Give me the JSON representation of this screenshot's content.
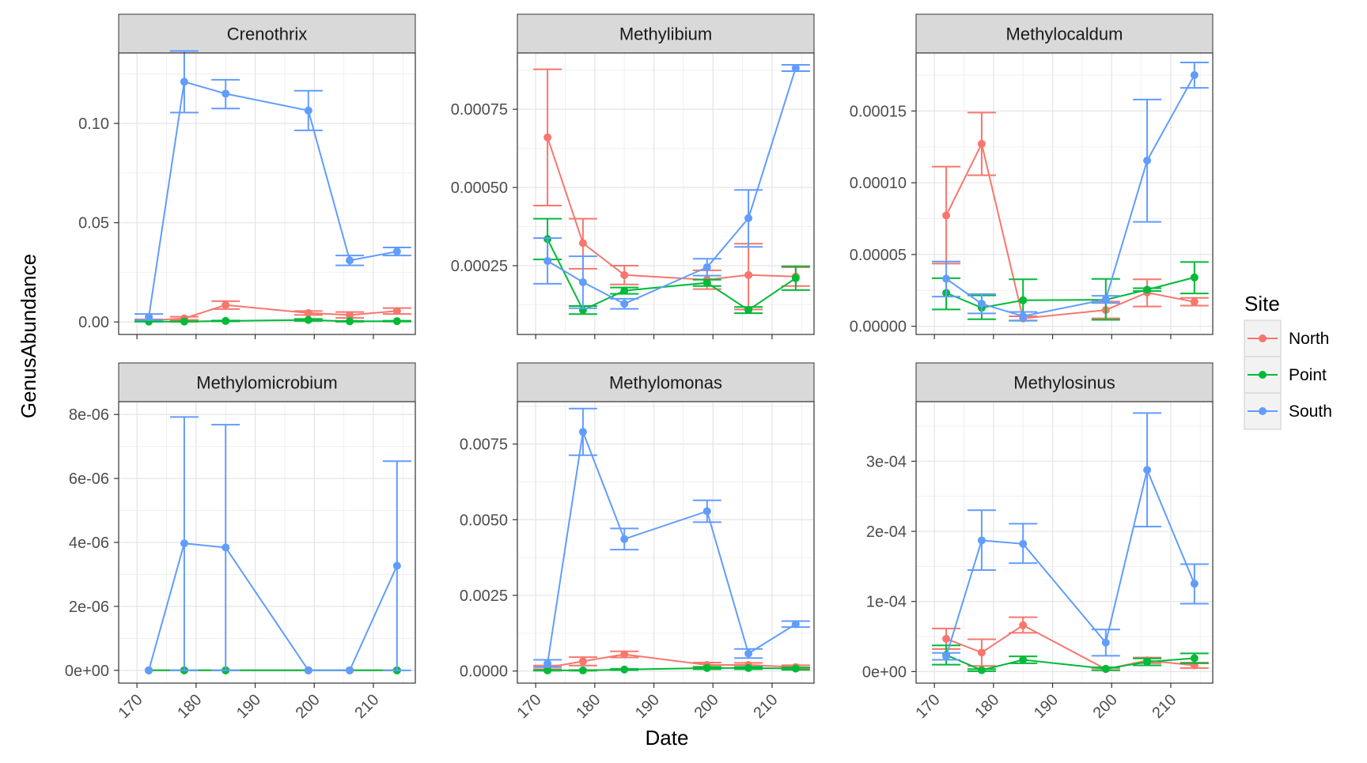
{
  "chart_data": {
    "type": "line",
    "xlabel": "Date",
    "ylabel": "GenusAbundance",
    "legend": {
      "title": "Site",
      "placement": "right",
      "entries": [
        {
          "name": "North",
          "color": "#F8766D"
        },
        {
          "name": "Point",
          "color": "#00BA38"
        },
        {
          "name": "South",
          "color": "#619CFF"
        }
      ]
    },
    "x_ticks": [
      170,
      180,
      190,
      200,
      210
    ],
    "xlim": [
      166.9,
      217.1
    ],
    "grid": true,
    "panels": [
      {
        "title": "Crenothrix",
        "ylim": [
          -0.0063,
          0.1355
        ],
        "y_ticks": [
          0.0,
          0.05,
          0.1
        ],
        "y_tick_labels": [
          "0.00",
          "0.05",
          "0.10"
        ],
        "series": [
          {
            "name": "North",
            "x": [
              172,
              178,
              185,
              199,
              206,
              214
            ],
            "y": [
              0.0008,
              0.0018,
              0.0085,
              0.0045,
              0.0035,
              0.0055
            ],
            "err_low": [
              0.0003,
              0.001,
              0.0065,
              0.0035,
              0.002,
              0.004
            ],
            "err_high": [
              0.0013,
              0.0026,
              0.0105,
              0.0055,
              0.005,
              0.007
            ]
          },
          {
            "name": "Point",
            "x": [
              172,
              178,
              185,
              199,
              206,
              214
            ],
            "y": [
              0.0002,
              0.0002,
              0.0005,
              0.001,
              0.0003,
              0.0004
            ],
            "err_low": [
              0.0001,
              0.0001,
              0.0003,
              0.0005,
              0.0001,
              0.0002
            ],
            "err_high": [
              0.0003,
              0.0003,
              0.0007,
              0.0015,
              0.0005,
              0.0006
            ]
          },
          {
            "name": "South",
            "x": [
              172,
              178,
              185,
              199,
              206,
              214
            ],
            "y": [
              0.0025,
              0.121,
              0.115,
              0.1065,
              0.031,
              0.0355
            ],
            "err_low": [
              0.001,
              0.1055,
              0.1075,
              0.0965,
              0.0285,
              0.0335
            ],
            "err_high": [
              0.004,
              0.1365,
              0.122,
              0.1165,
              0.0335,
              0.0375
            ]
          }
        ]
      },
      {
        "title": "Methylibium",
        "ylim": [
          3e-05,
          0.00093
        ],
        "y_ticks": [
          0.00025,
          0.0005,
          0.00075
        ],
        "y_tick_labels": [
          "0.00025",
          "0.00050",
          "0.00075"
        ],
        "series": [
          {
            "name": "North",
            "x": [
              172,
              178,
              185,
              199,
              206,
              214
            ],
            "y": [
              0.00066,
              0.000322,
              0.00022,
              0.000205,
              0.00022,
              0.000215
            ],
            "err_low": [
              0.000442,
              0.00024,
              0.00019,
              0.000175,
              0.00011,
              0.000185
            ],
            "err_high": [
              0.000878,
              0.0004,
              0.00025,
              0.000235,
              0.00032,
              0.000245
            ]
          },
          {
            "name": "Point",
            "x": [
              172,
              178,
              185,
              199,
              206,
              214
            ],
            "y": [
              0.000335,
              0.000108,
              0.00017,
              0.000195,
              0.000108,
              0.00021
            ],
            "err_low": [
              0.00027,
              9.5e-05,
              0.00016,
              0.000185,
              9.8e-05,
              0.000172
            ],
            "err_high": [
              0.0004,
              0.000121,
              0.00018,
              0.000205,
              0.000118,
              0.000248
            ]
          },
          {
            "name": "South",
            "x": [
              172,
              178,
              185,
              199,
              206,
              214
            ],
            "y": [
              0.000265,
              0.000197,
              0.000128,
              0.000245,
              0.000402,
              0.000882
            ],
            "err_low": [
              0.000192,
              0.000114,
              0.000112,
              0.000218,
              0.00031,
              0.000872
            ],
            "err_high": [
              0.000338,
              0.00028,
              0.000144,
              0.000272,
              0.000492,
              0.000892
            ]
          }
        ]
      },
      {
        "title": "Methylocaldum",
        "ylim": [
          -5.7e-06,
          0.0001904
        ],
        "y_ticks": [
          0.0,
          5e-05,
          0.0001,
          0.00015
        ],
        "y_tick_labels": [
          "0.00000",
          "0.00005",
          "0.00010",
          "0.00015"
        ],
        "series": [
          {
            "name": "North",
            "x": [
              172,
              178,
              185,
              199,
              206,
              214
            ],
            "y": [
              7.72e-05,
              0.0001271,
              5.5e-06,
              1.13e-05,
              2.35e-05,
              1.7e-05
            ],
            "err_low": [
              4.37e-05,
              0.0001052,
              4e-06,
              5.5e-06,
              1.38e-05,
              1.44e-05
            ],
            "err_high": [
              0.0001112,
              0.0001489,
              7e-06,
              1.72e-05,
              3.27e-05,
              1.98e-05
            ]
          },
          {
            "name": "Point",
            "x": [
              172,
              178,
              185,
              199,
              206,
              214
            ],
            "y": [
              2.32e-05,
              1.29e-05,
              1.81e-05,
              1.85e-05,
              2.55e-05,
              3.4e-05
            ],
            "err_low": [
              1.17e-05,
              4.9e-06,
              3.9e-06,
              4.5e-06,
              2.45e-05,
              2.29e-05
            ],
            "err_high": [
              3.35e-05,
              2.15e-05,
              3.27e-05,
              3.3e-05,
              2.65e-05,
              4.48e-05
            ]
          },
          {
            "name": "South",
            "x": [
              172,
              178,
              185,
              199,
              206,
              214
            ],
            "y": [
              3.31e-05,
              1.57e-05,
              7e-06,
              1.87e-05,
              0.0001155,
              0.000175
            ],
            "err_low": [
              2.07e-05,
              9e-06,
              4e-06,
              1.62e-05,
              7.27e-05,
              0.0001661
            ],
            "err_high": [
              4.51e-05,
              2.24e-05,
              1e-05,
              2.12e-05,
              0.000158,
              0.0001838
            ]
          }
        ]
      },
      {
        "title": "Methylomicrobium",
        "ylim": [
          -4e-07,
          8.4e-06
        ],
        "y_ticks": [
          0.0,
          2e-06,
          4e-06,
          6e-06,
          8e-06
        ],
        "y_tick_labels": [
          "0e+00",
          "2e-06",
          "4e-06",
          "6e-06",
          "8e-06"
        ],
        "series": [
          {
            "name": "North",
            "x": [
              172,
              178,
              185,
              199,
              206,
              214
            ],
            "y": [
              0,
              0,
              0,
              0,
              0,
              0
            ]
          },
          {
            "name": "Point",
            "x": [
              172,
              178,
              185,
              199,
              206,
              214
            ],
            "y": [
              0,
              0,
              0,
              0,
              0,
              0
            ]
          },
          {
            "name": "South",
            "x": [
              172,
              178,
              185,
              199,
              206,
              214
            ],
            "y": [
              0,
              3.97e-06,
              3.84e-06,
              0,
              0,
              3.27e-06
            ],
            "err_low": [
              0,
              0,
              0,
              0,
              0,
              0
            ],
            "err_high": [
              0,
              7.92e-06,
              7.68e-06,
              0,
              0,
              6.54e-06
            ]
          }
        ]
      },
      {
        "title": "Methylomonas",
        "ylim": [
          -0.0004,
          0.0089
        ],
        "y_ticks": [
          0.0,
          0.0025,
          0.005,
          0.0075
        ],
        "y_tick_labels": [
          "0.0000",
          "0.0025",
          "0.0050",
          "0.0075"
        ],
        "series": [
          {
            "name": "North",
            "x": [
              172,
              178,
              185,
              199,
              206,
              214
            ],
            "y": [
              0.00012,
              0.00032,
              0.00055,
              0.0002,
              0.0002,
              0.00013
            ],
            "err_low": [
              6e-05,
              0.00018,
              0.00045,
              0.00012,
              0.00013,
              7e-05
            ],
            "err_high": [
              0.00018,
              0.00046,
              0.00065,
              0.00028,
              0.00027,
              0.00019
            ]
          },
          {
            "name": "Point",
            "x": [
              172,
              178,
              185,
              199,
              206,
              214
            ],
            "y": [
              2e-05,
              2e-05,
              5e-05,
              0.0001,
              0.0001,
              8e-05
            ],
            "err_low": [
              1e-05,
              1e-05,
              3e-05,
              6e-05,
              6e-05,
              4e-05
            ],
            "err_high": [
              3e-05,
              3e-05,
              7e-05,
              0.00014,
              0.00014,
              0.00012
            ]
          },
          {
            "name": "South",
            "x": [
              172,
              178,
              185,
              199,
              206,
              214
            ],
            "y": [
              0.00025,
              0.0079,
              0.00436,
              0.00528,
              0.00058,
              0.00155
            ],
            "err_low": [
              0.00013,
              0.00713,
              0.00401,
              0.00492,
              0.00043,
              0.00145
            ],
            "err_high": [
              0.00037,
              0.00867,
              0.00471,
              0.00564,
              0.00073,
              0.00165
            ]
          }
        ]
      },
      {
        "title": "Methylosinus",
        "ylim": [
          -1.65e-05,
          0.000385
        ],
        "y_ticks": [
          0.0,
          0.0001,
          0.0002,
          0.0003
        ],
        "y_tick_labels": [
          "0e+00",
          "1e-04",
          "2e-04",
          "3e-04"
        ],
        "series": [
          {
            "name": "North",
            "x": [
              172,
              178,
              185,
              199,
              206,
              214
            ],
            "y": [
              4.68e-05,
              2.71e-05,
              6.61e-05,
              3.5e-06,
              1.6e-05,
              8.9e-06
            ],
            "err_low": [
              3.21e-05,
              8e-06,
              5.53e-05,
              2e-06,
              1.2e-05,
              5e-06
            ],
            "err_high": [
              6.15e-05,
              4.61e-05,
              7.76e-05,
              5e-06,
              2e-05,
              1.28e-05
            ]
          },
          {
            "name": "Point",
            "x": [
              172,
              178,
              185,
              199,
              206,
              214
            ],
            "y": [
              2.36e-05,
              2e-06,
              1.68e-05,
              4e-06,
              1.38e-05,
              1.9e-05
            ],
            "err_low": [
              9.9e-06,
              5e-07,
              1.19e-05,
              2e-06,
              8.9e-06,
              1.19e-05
            ],
            "err_high": [
              3.74e-05,
              3.5e-06,
              2.17e-05,
              6e-06,
              1.87e-05,
              2.6e-05
            ]
          },
          {
            "name": "South",
            "x": [
              172,
              178,
              185,
              199,
              206,
              214
            ],
            "y": [
              2.17e-05,
              0.0001871,
              0.0001822,
              4.13e-05,
              0.0002876,
              0.0001254
            ],
            "err_low": [
              1.68e-05,
              0.0001448,
              0.0001546,
              2.26e-05,
              0.0002068,
              9.69e-05
            ],
            "err_high": [
              2.66e-05,
              0.0002302,
              0.0002109,
              6e-05,
              0.0003688,
              0.0001532
            ]
          }
        ]
      }
    ]
  }
}
